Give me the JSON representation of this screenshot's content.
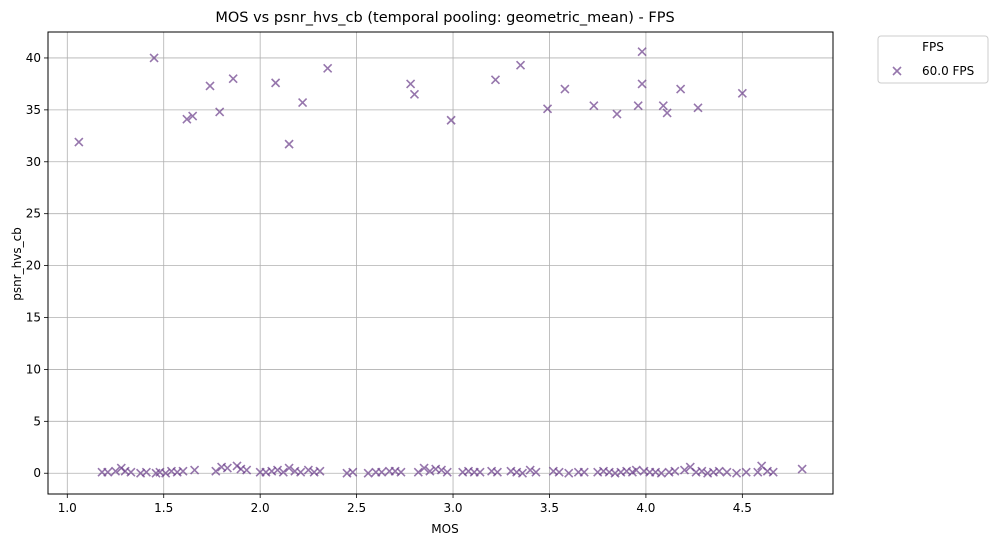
{
  "chart_data": {
    "type": "scatter",
    "title": "MOS vs psnr_hvs_cb (temporal pooling: geometric_mean) - FPS",
    "xlabel": "MOS",
    "ylabel": "psnr_hvs_cb",
    "xlim": [
      0.9,
      4.97
    ],
    "ylim": [
      -2.0,
      42.5
    ],
    "xticks": [
      "1.0",
      "1.5",
      "2.0",
      "2.5",
      "3.0",
      "3.5",
      "4.0",
      "4.5"
    ],
    "yticks": [
      "0",
      "5",
      "10",
      "15",
      "20",
      "25",
      "30",
      "35",
      "40"
    ],
    "grid": true,
    "legend": {
      "title": "FPS",
      "placement": "upper-right-outside"
    },
    "series": [
      {
        "name": "60.0 FPS",
        "color": "#6a3d8a",
        "marker": "x",
        "points": [
          [
            1.06,
            31.9
          ],
          [
            1.45,
            40.0
          ],
          [
            1.62,
            34.1
          ],
          [
            1.65,
            34.4
          ],
          [
            1.74,
            37.3
          ],
          [
            1.79,
            34.8
          ],
          [
            1.86,
            38.0
          ],
          [
            2.08,
            37.6
          ],
          [
            2.15,
            31.7
          ],
          [
            2.22,
            35.7
          ],
          [
            2.35,
            39.0
          ],
          [
            2.78,
            37.5
          ],
          [
            2.8,
            36.5
          ],
          [
            2.99,
            34.0
          ],
          [
            3.22,
            37.9
          ],
          [
            3.35,
            39.3
          ],
          [
            3.49,
            35.1
          ],
          [
            3.58,
            37.0
          ],
          [
            3.73,
            35.4
          ],
          [
            3.85,
            34.6
          ],
          [
            3.96,
            35.4
          ],
          [
            3.98,
            40.6
          ],
          [
            3.98,
            37.5
          ],
          [
            4.09,
            35.4
          ],
          [
            4.11,
            34.7
          ],
          [
            4.18,
            37.0
          ],
          [
            4.27,
            35.2
          ],
          [
            4.5,
            36.6
          ],
          [
            1.18,
            0.1
          ],
          [
            1.21,
            0.1
          ],
          [
            1.25,
            0.2
          ],
          [
            1.28,
            0.5
          ],
          [
            1.3,
            0.2
          ],
          [
            1.33,
            0.1
          ],
          [
            1.38,
            0.0
          ],
          [
            1.41,
            0.1
          ],
          [
            1.46,
            0.0
          ],
          [
            1.48,
            0.1
          ],
          [
            1.51,
            0.0
          ],
          [
            1.54,
            0.2
          ],
          [
            1.57,
            0.1
          ],
          [
            1.6,
            0.2
          ],
          [
            1.66,
            0.3
          ],
          [
            1.77,
            0.2
          ],
          [
            1.8,
            0.6
          ],
          [
            1.83,
            0.5
          ],
          [
            1.88,
            0.7
          ],
          [
            1.9,
            0.4
          ],
          [
            1.93,
            0.3
          ],
          [
            2.0,
            0.1
          ],
          [
            2.03,
            0.1
          ],
          [
            2.06,
            0.2
          ],
          [
            2.09,
            0.3
          ],
          [
            2.12,
            0.1
          ],
          [
            2.15,
            0.5
          ],
          [
            2.18,
            0.2
          ],
          [
            2.21,
            0.1
          ],
          [
            2.25,
            0.3
          ],
          [
            2.28,
            0.1
          ],
          [
            2.31,
            0.2
          ],
          [
            2.45,
            0.0
          ],
          [
            2.48,
            0.1
          ],
          [
            2.56,
            0.0
          ],
          [
            2.6,
            0.1
          ],
          [
            2.63,
            0.1
          ],
          [
            2.67,
            0.2
          ],
          [
            2.7,
            0.2
          ],
          [
            2.73,
            0.1
          ],
          [
            2.82,
            0.1
          ],
          [
            2.85,
            0.5
          ],
          [
            2.88,
            0.2
          ],
          [
            2.91,
            0.4
          ],
          [
            2.94,
            0.3
          ],
          [
            2.97,
            0.1
          ],
          [
            3.05,
            0.1
          ],
          [
            3.08,
            0.2
          ],
          [
            3.11,
            0.1
          ],
          [
            3.14,
            0.1
          ],
          [
            3.2,
            0.2
          ],
          [
            3.23,
            0.1
          ],
          [
            3.3,
            0.2
          ],
          [
            3.33,
            0.1
          ],
          [
            3.36,
            0.0
          ],
          [
            3.4,
            0.3
          ],
          [
            3.43,
            0.1
          ],
          [
            3.52,
            0.2
          ],
          [
            3.55,
            0.1
          ],
          [
            3.6,
            0.0
          ],
          [
            3.65,
            0.1
          ],
          [
            3.68,
            0.1
          ],
          [
            3.75,
            0.1
          ],
          [
            3.78,
            0.2
          ],
          [
            3.81,
            0.1
          ],
          [
            3.84,
            0.0
          ],
          [
            3.87,
            0.1
          ],
          [
            3.9,
            0.2
          ],
          [
            3.93,
            0.1
          ],
          [
            3.95,
            0.3
          ],
          [
            3.99,
            0.2
          ],
          [
            4.02,
            0.1
          ],
          [
            4.05,
            0.1
          ],
          [
            4.08,
            0.0
          ],
          [
            4.12,
            0.1
          ],
          [
            4.15,
            0.2
          ],
          [
            4.2,
            0.3
          ],
          [
            4.23,
            0.6
          ],
          [
            4.26,
            0.1
          ],
          [
            4.29,
            0.2
          ],
          [
            4.32,
            0.0
          ],
          [
            4.35,
            0.1
          ],
          [
            4.38,
            0.2
          ],
          [
            4.42,
            0.1
          ],
          [
            4.47,
            0.0
          ],
          [
            4.52,
            0.1
          ],
          [
            4.58,
            0.1
          ],
          [
            4.6,
            0.7
          ],
          [
            4.63,
            0.2
          ],
          [
            4.66,
            0.1
          ],
          [
            4.81,
            0.4
          ]
        ]
      }
    ]
  }
}
